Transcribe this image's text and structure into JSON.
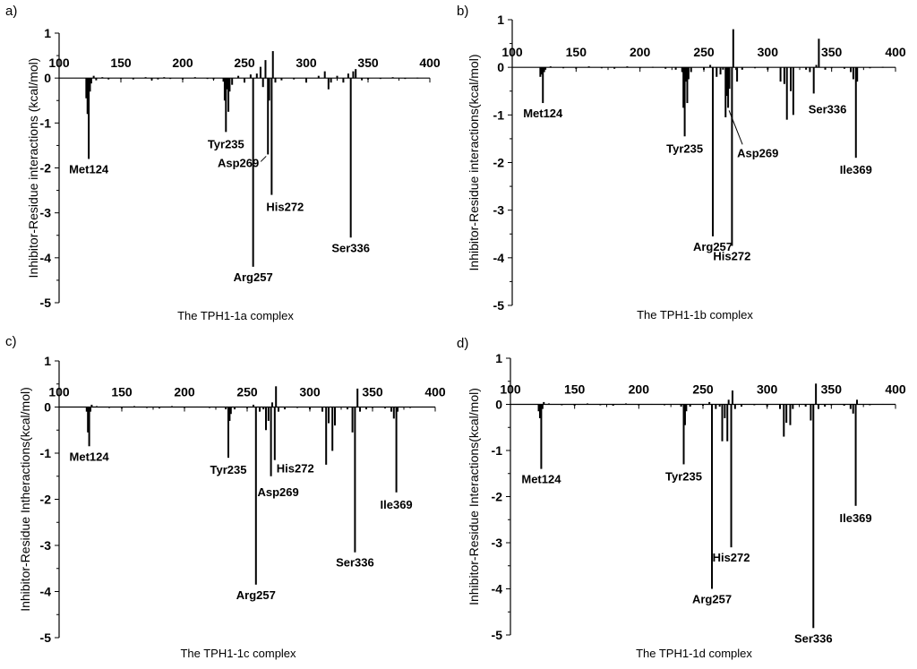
{
  "chart_data": [
    {
      "type": "bar",
      "panel_label": "a)",
      "caption": "The TPH1-1a complex",
      "ylabel": "Inhibitor-Residue interactions (kcal/mol)",
      "xlabel": "",
      "xlim": [
        100,
        400
      ],
      "ylim": [
        -5,
        1
      ],
      "xticks": [
        100,
        150,
        200,
        250,
        300,
        350,
        400
      ],
      "yticks": [
        -5,
        -4,
        -3,
        -2,
        -1,
        0,
        1
      ],
      "x": [
        122,
        123,
        124,
        125,
        126,
        128,
        130,
        135,
        140,
        150,
        160,
        170,
        175,
        180,
        185,
        190,
        200,
        210,
        220,
        225,
        233,
        234,
        235,
        236,
        237,
        238,
        240,
        245,
        250,
        255,
        257,
        260,
        263,
        265,
        267,
        269,
        270,
        272,
        273,
        275,
        280,
        290,
        300,
        310,
        315,
        318,
        320,
        325,
        330,
        334,
        336,
        338,
        340,
        345,
        350,
        360,
        370,
        380,
        390
      ],
      "values": [
        -0.45,
        -0.8,
        -1.8,
        -0.3,
        -0.12,
        0.05,
        -0.05,
        0.02,
        -0.03,
        -0.02,
        -0.03,
        0.02,
        -0.05,
        -0.03,
        0.02,
        -0.02,
        -0.03,
        0.02,
        -0.02,
        -0.03,
        -0.08,
        -0.5,
        -1.2,
        -0.25,
        -0.75,
        -0.3,
        -0.15,
        0.05,
        -0.1,
        0.08,
        -4.2,
        0.1,
        0.25,
        -0.2,
        0.4,
        -1.7,
        -0.5,
        -2.6,
        0.6,
        -0.1,
        -0.05,
        -0.03,
        -0.1,
        0.05,
        0.15,
        -0.25,
        -0.1,
        0.05,
        -0.1,
        0.1,
        -3.55,
        0.15,
        0.2,
        -0.05,
        -0.03,
        -0.02,
        0.02,
        -0.02,
        0.01
      ],
      "annotations": [
        {
          "text": "Met124",
          "x": 124,
          "y": -1.8
        },
        {
          "text": "Tyr235",
          "x": 235,
          "y": -1.2
        },
        {
          "text": "Asp269",
          "x": 269,
          "y": -1.7
        },
        {
          "text": "His272",
          "x": 272,
          "y": -2.6
        },
        {
          "text": "Arg257",
          "x": 257,
          "y": -4.2
        },
        {
          "text": "Ser336",
          "x": 336,
          "y": -3.55
        }
      ]
    },
    {
      "type": "bar",
      "panel_label": "b)",
      "caption": "The TPH1-1b complex",
      "ylabel": "Inhibitor-Residue interactions(kcal/mol)",
      "xlabel": "",
      "xlim": [
        100,
        400
      ],
      "ylim": [
        -5,
        1
      ],
      "xticks": [
        100,
        150,
        200,
        250,
        300,
        350,
        400
      ],
      "yticks": [
        -5,
        -4,
        -3,
        -2,
        -1,
        0,
        1
      ],
      "x": [
        122,
        123,
        124,
        125,
        126,
        130,
        140,
        150,
        160,
        170,
        180,
        190,
        200,
        210,
        220,
        228,
        233,
        234,
        235,
        236,
        237,
        238,
        240,
        250,
        255,
        257,
        260,
        263,
        265,
        267,
        268,
        269,
        270,
        272,
        273,
        276,
        280,
        290,
        300,
        310,
        313,
        315,
        318,
        320,
        330,
        333,
        336,
        338,
        340,
        345,
        350,
        360,
        365,
        367,
        369,
        370,
        380,
        390
      ],
      "values": [
        -0.2,
        -0.15,
        -0.75,
        -0.1,
        -0.05,
        0.02,
        -0.02,
        -0.03,
        0.02,
        -0.02,
        -0.03,
        0.02,
        -0.02,
        0.01,
        -0.03,
        -0.05,
        -0.1,
        -0.85,
        -1.45,
        -0.3,
        -0.75,
        -0.25,
        -0.1,
        -0.05,
        0.05,
        -3.55,
        -0.2,
        -0.15,
        -0.05,
        -1.05,
        -0.6,
        -0.85,
        -0.45,
        -3.75,
        0.8,
        -0.3,
        -0.05,
        -0.02,
        -0.05,
        -0.3,
        -0.35,
        -1.1,
        -0.5,
        -1.0,
        -0.05,
        -0.1,
        -0.55,
        0.05,
        0.6,
        -0.05,
        -0.02,
        -0.03,
        -0.1,
        -0.25,
        -1.9,
        -0.3,
        -0.02,
        0.01
      ],
      "annotations": [
        {
          "text": "Met124",
          "x": 124,
          "y": -0.75
        },
        {
          "text": "Tyr235",
          "x": 235,
          "y": -1.45
        },
        {
          "text": "Asp269",
          "x": 269,
          "y": -0.85
        },
        {
          "text": "Arg257",
          "x": 257,
          "y": -3.55
        },
        {
          "text": "His272",
          "x": 272,
          "y": -3.75
        },
        {
          "text": "Ser336",
          "x": 336,
          "y": -0.55
        },
        {
          "text": "Ile369",
          "x": 369,
          "y": -1.9
        }
      ]
    },
    {
      "type": "bar",
      "panel_label": "c)",
      "caption": "The TPH1-1c complex",
      "ylabel": "Inhibitor-Residue Intheractions(kcal/mol)",
      "xlabel": "",
      "xlim": [
        100,
        400
      ],
      "ylim": [
        -5,
        1
      ],
      "xticks": [
        100,
        150,
        200,
        250,
        300,
        350,
        400
      ],
      "yticks": [
        -5,
        -4,
        -3,
        -2,
        -1,
        0,
        1
      ],
      "x": [
        122,
        123,
        124,
        125,
        126,
        130,
        140,
        150,
        160,
        170,
        180,
        190,
        200,
        210,
        220,
        233,
        235,
        236,
        237,
        240,
        250,
        255,
        257,
        260,
        263,
        265,
        267,
        269,
        270,
        272,
        273,
        275,
        280,
        290,
        300,
        310,
        313,
        315,
        318,
        320,
        330,
        334,
        336,
        338,
        340,
        345,
        350,
        360,
        365,
        367,
        369,
        370,
        380,
        390
      ],
      "values": [
        -0.1,
        -0.55,
        -0.85,
        -0.1,
        0.05,
        0.02,
        -0.02,
        -0.03,
        0.02,
        -0.02,
        -0.03,
        0.02,
        -0.02,
        0.01,
        -0.02,
        -0.05,
        -1.1,
        -0.3,
        -0.15,
        -0.05,
        -0.03,
        0.05,
        -3.85,
        -0.1,
        -0.05,
        -0.5,
        -0.3,
        -1.5,
        0.1,
        -1.15,
        0.45,
        -0.1,
        -0.05,
        -0.02,
        -0.05,
        -0.1,
        -1.25,
        -0.35,
        -0.95,
        -0.4,
        -0.05,
        -0.55,
        -3.15,
        0.4,
        -0.1,
        -0.05,
        -0.02,
        -0.03,
        -0.1,
        -0.25,
        -1.85,
        -0.1,
        -0.02,
        0.01
      ],
      "annotations": [
        {
          "text": "Met124",
          "x": 124,
          "y": -0.85
        },
        {
          "text": "Tyr235",
          "x": 235,
          "y": -1.1
        },
        {
          "text": "His272",
          "x": 272,
          "y": -1.15
        },
        {
          "text": "Asp269",
          "x": 269,
          "y": -1.5
        },
        {
          "text": "Arg257",
          "x": 257,
          "y": -3.85
        },
        {
          "text": "Ser336",
          "x": 336,
          "y": -3.15
        },
        {
          "text": "Ile369",
          "x": 369,
          "y": -1.85
        }
      ]
    },
    {
      "type": "bar",
      "panel_label": "d)",
      "caption": "The TPH1-1d complex",
      "ylabel": "Inhibitor-Residue Interactions(kcal/mol)",
      "xlabel": "",
      "xlim": [
        100,
        400
      ],
      "ylim": [
        -5,
        1
      ],
      "xticks": [
        100,
        150,
        200,
        250,
        300,
        350,
        400
      ],
      "yticks": [
        -5,
        -4,
        -3,
        -2,
        -1,
        0,
        1
      ],
      "x": [
        122,
        123,
        124,
        125,
        126,
        130,
        140,
        150,
        160,
        170,
        180,
        190,
        200,
        210,
        220,
        233,
        235,
        236,
        237,
        240,
        250,
        255,
        257,
        260,
        263,
        265,
        267,
        269,
        270,
        272,
        273,
        275,
        280,
        290,
        300,
        310,
        313,
        315,
        318,
        320,
        330,
        334,
        336,
        338,
        340,
        345,
        350,
        360,
        365,
        367,
        369,
        370,
        380,
        390
      ],
      "values": [
        -0.15,
        -0.3,
        -1.4,
        -0.1,
        0.05,
        0.02,
        -0.02,
        -0.03,
        0.02,
        -0.02,
        -0.03,
        0.02,
        -0.02,
        0.01,
        -0.02,
        -0.05,
        -1.3,
        -0.45,
        -0.15,
        -0.05,
        -0.03,
        0.05,
        -4.0,
        -0.1,
        -0.05,
        -0.8,
        -0.3,
        -0.8,
        0.1,
        -3.1,
        0.3,
        -0.1,
        -0.05,
        -0.02,
        -0.05,
        -0.1,
        -0.7,
        -0.4,
        -0.45,
        -0.1,
        -0.05,
        -0.35,
        -4.85,
        0.45,
        -0.1,
        -0.05,
        -0.02,
        -0.03,
        -0.1,
        -0.2,
        -2.2,
        0.1,
        -0.02,
        0.01
      ],
      "annotations": [
        {
          "text": "Met124",
          "x": 124,
          "y": -1.4
        },
        {
          "text": "Tyr235",
          "x": 235,
          "y": -1.3
        },
        {
          "text": "His272",
          "x": 272,
          "y": -3.1
        },
        {
          "text": "Arg257",
          "x": 257,
          "y": -4.0
        },
        {
          "text": "Ser336",
          "x": 336,
          "y": -4.85
        },
        {
          "text": "Ile369",
          "x": 369,
          "y": -2.2
        }
      ]
    }
  ]
}
